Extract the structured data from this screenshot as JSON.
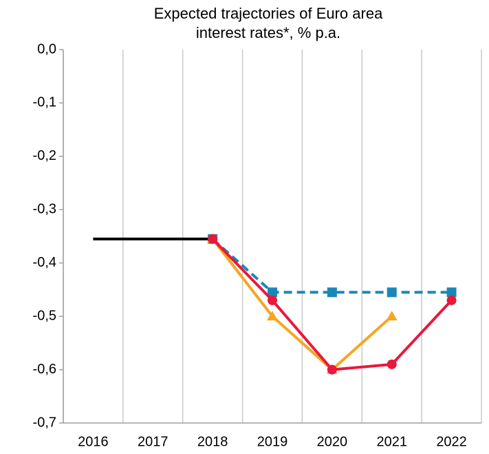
{
  "chart_data": {
    "type": "line",
    "title": "Expected trajectories of Euro area interest rates*, % p.a.",
    "categories": [
      "2016",
      "2017",
      "2018",
      "2019",
      "2020",
      "2021",
      "2022"
    ],
    "series": [
      {
        "color": "#000000",
        "marker": "none",
        "dashed": false,
        "values": [
          -0.355,
          -0.355,
          -0.355,
          null,
          null,
          null,
          null
        ]
      },
      {
        "color": "#1b87b9",
        "marker": "square",
        "dashed": true,
        "values": [
          null,
          null,
          -0.355,
          -0.455,
          -0.455,
          -0.455,
          -0.455
        ]
      },
      {
        "color": "#f5a623",
        "marker": "triangle",
        "dashed": false,
        "values": [
          null,
          null,
          -0.355,
          -0.5,
          -0.6,
          -0.5,
          null
        ]
      },
      {
        "color": "#e8193c",
        "marker": "circle",
        "dashed": false,
        "values": [
          null,
          null,
          -0.355,
          -0.47,
          -0.6,
          -0.59,
          -0.47
        ]
      }
    ],
    "ylim": [
      -0.7,
      0
    ],
    "yticks": [
      {
        "value": 0,
        "label": "0,0"
      },
      {
        "value": -0.1,
        "label": "-0,1"
      },
      {
        "value": -0.2,
        "label": "-0,2"
      },
      {
        "value": -0.3,
        "label": "-0,3"
      },
      {
        "value": -0.4,
        "label": "-0,4"
      },
      {
        "value": -0.5,
        "label": "-0,5"
      },
      {
        "value": -0.6,
        "label": "-0,6"
      },
      {
        "value": -0.7,
        "label": "-0,7"
      }
    ],
    "grid": false
  }
}
